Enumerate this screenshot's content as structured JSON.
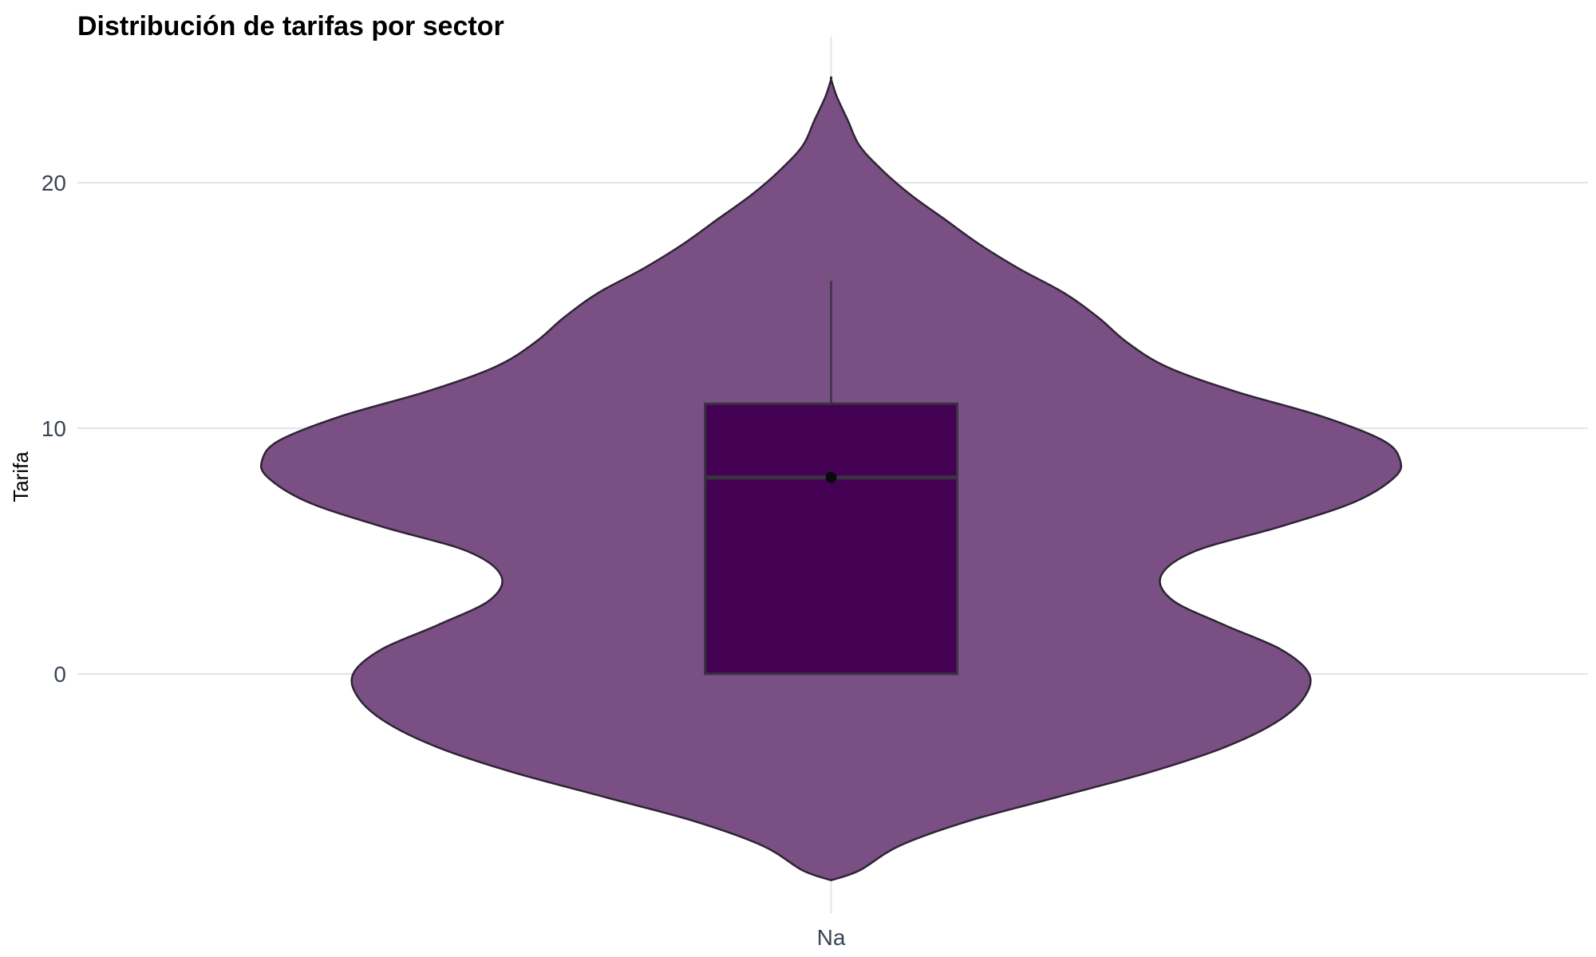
{
  "chart_data": {
    "type": "violin",
    "title": "Distribución de tarifas por sector",
    "xlabel": "",
    "ylabel": "Tarifa",
    "categories": [
      "Na"
    ],
    "yticks": [
      0,
      10,
      20
    ],
    "ytick_labels": [
      "0",
      "10",
      "20"
    ],
    "ylim": [
      -9.6,
      26
    ],
    "grid": true,
    "legend": "none",
    "series": [
      {
        "category": "Na",
        "violin_range": [
          -8.4,
          24.2
        ],
        "density_profile": [
          [
            -8.4,
            0.0
          ],
          [
            -8.0,
            0.05
          ],
          [
            -7.0,
            0.12
          ],
          [
            -6.0,
            0.24
          ],
          [
            -5.0,
            0.4
          ],
          [
            -4.0,
            0.56
          ],
          [
            -3.0,
            0.69
          ],
          [
            -2.0,
            0.78
          ],
          [
            -1.0,
            0.83
          ],
          [
            0.0,
            0.84
          ],
          [
            1.0,
            0.79
          ],
          [
            2.0,
            0.69
          ],
          [
            3.0,
            0.6
          ],
          [
            4.0,
            0.58
          ],
          [
            5.0,
            0.64
          ],
          [
            6.0,
            0.79
          ],
          [
            7.0,
            0.92
          ],
          [
            8.0,
            0.99
          ],
          [
            8.7,
            1.0
          ],
          [
            9.5,
            0.97
          ],
          [
            10.5,
            0.86
          ],
          [
            11.5,
            0.71
          ],
          [
            12.5,
            0.59
          ],
          [
            13.5,
            0.52
          ],
          [
            14.5,
            0.47
          ],
          [
            15.5,
            0.41
          ],
          [
            16.5,
            0.33
          ],
          [
            17.5,
            0.26
          ],
          [
            18.5,
            0.2
          ],
          [
            19.5,
            0.14
          ],
          [
            20.5,
            0.09
          ],
          [
            21.5,
            0.05
          ],
          [
            22.5,
            0.03
          ],
          [
            23.5,
            0.01
          ],
          [
            24.2,
            0.0
          ]
        ],
        "box": {
          "q1": 0,
          "median": 8,
          "q3": 11,
          "whisker_low": 0,
          "whisker_high": 16,
          "mean": 8
        }
      }
    ],
    "colors": {
      "violin_fill": "#7a5084",
      "violin_stroke": "#2e2433",
      "box_fill": "#440154",
      "box_stroke": "#3a3340",
      "mean_point": "#0a0a0a",
      "grid": "#e1e4ea"
    }
  }
}
